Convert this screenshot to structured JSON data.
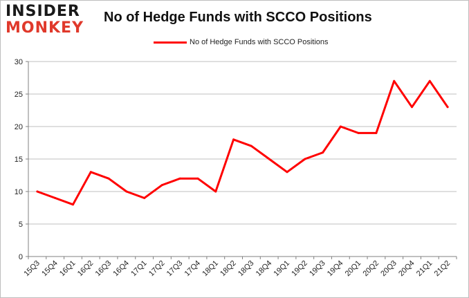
{
  "logo": {
    "line1": "INSIDER",
    "line2": "MONKEY"
  },
  "colors": {
    "line": "#ff0000",
    "grid": "#bfbfbf",
    "logo_accent": "#e0392b"
  },
  "chart_data": {
    "type": "line",
    "title": "No of Hedge Funds with SCCO Positions",
    "xlabel": "",
    "ylabel": "",
    "categories": [
      "15Q3",
      "15Q4",
      "16Q1",
      "16Q2",
      "16Q3",
      "16Q4",
      "17Q1",
      "17Q2",
      "17Q3",
      "17Q4",
      "18Q1",
      "18Q2",
      "18Q3",
      "18Q4",
      "19Q1",
      "19Q2",
      "19Q3",
      "19Q4",
      "20Q1",
      "20Q2",
      "20Q3",
      "20Q4",
      "21Q1",
      "21Q2"
    ],
    "series": [
      {
        "name": "No of Hedge Funds with SCCO Positions",
        "values": [
          10,
          9,
          8,
          13,
          12,
          10,
          9,
          11,
          12,
          12,
          10,
          18,
          17,
          15,
          13,
          15,
          16,
          20,
          19,
          19,
          27,
          23,
          27,
          23
        ]
      }
    ],
    "ylim": [
      0,
      30
    ],
    "yticks": [
      0,
      5,
      10,
      15,
      20,
      25,
      30
    ],
    "grid": true,
    "legend": "top-center"
  }
}
